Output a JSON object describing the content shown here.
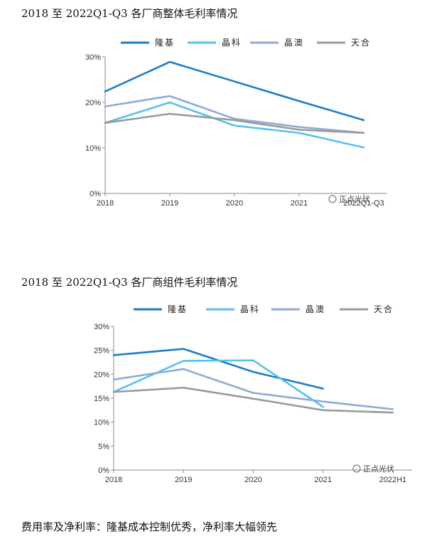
{
  "section1_title": "2018 至 2022Q1-Q3 各厂商整体毛利率情况",
  "section2_title": "2018 至 2022Q1-Q3 各厂商组件毛利率情况",
  "footer_text": "费用率及净利率：隆基成本控制优秀，净利率大幅领先",
  "watermark_text": "正点光伏",
  "chart_data": [
    {
      "type": "line",
      "title": "",
      "xlabel": "",
      "ylabel": "",
      "categories": [
        "2018",
        "2019",
        "2020",
        "2021",
        "2022Q1-Q3"
      ],
      "yticks": [
        "0%",
        "10%",
        "20%",
        "30%"
      ],
      "ylim": [
        0,
        30
      ],
      "grid": false,
      "legend": "top",
      "series": [
        {
          "name": "隆基",
          "color": "#1a7dc4",
          "values": [
            22.4,
            28.9,
            24.6,
            20.3,
            16.1
          ]
        },
        {
          "name": "晶科",
          "color": "#55c1ee",
          "values": [
            15.5,
            20.0,
            14.9,
            13.3,
            10.1
          ]
        },
        {
          "name": "晶澳",
          "color": "#8faad6",
          "values": [
            19.1,
            21.4,
            16.4,
            14.6,
            13.3
          ]
        },
        {
          "name": "天合",
          "color": "#9a9a9a",
          "values": [
            15.5,
            17.5,
            16.1,
            14.0,
            13.3
          ]
        }
      ]
    },
    {
      "type": "line",
      "title": "",
      "xlabel": "",
      "ylabel": "",
      "categories": [
        "2018",
        "2019",
        "2020",
        "2021",
        "2022H1"
      ],
      "yticks": [
        "0%",
        "5%",
        "10%",
        "15%",
        "20%",
        "25%",
        "30%"
      ],
      "ylim": [
        0,
        30
      ],
      "grid": false,
      "legend": "top",
      "series": [
        {
          "name": "隆基",
          "color": "#1a7dc4",
          "values": [
            24.0,
            25.3,
            20.5,
            17.0,
            null
          ]
        },
        {
          "name": "晶科",
          "color": "#55c1ee",
          "values": [
            16.3,
            22.8,
            22.9,
            13.2,
            null
          ]
        },
        {
          "name": "晶澳",
          "color": "#8faad6",
          "values": [
            18.9,
            21.1,
            16.1,
            14.3,
            12.7
          ]
        },
        {
          "name": "天合",
          "color": "#9a9a9a",
          "values": [
            16.3,
            17.2,
            14.9,
            12.5,
            12.0
          ]
        }
      ]
    }
  ]
}
